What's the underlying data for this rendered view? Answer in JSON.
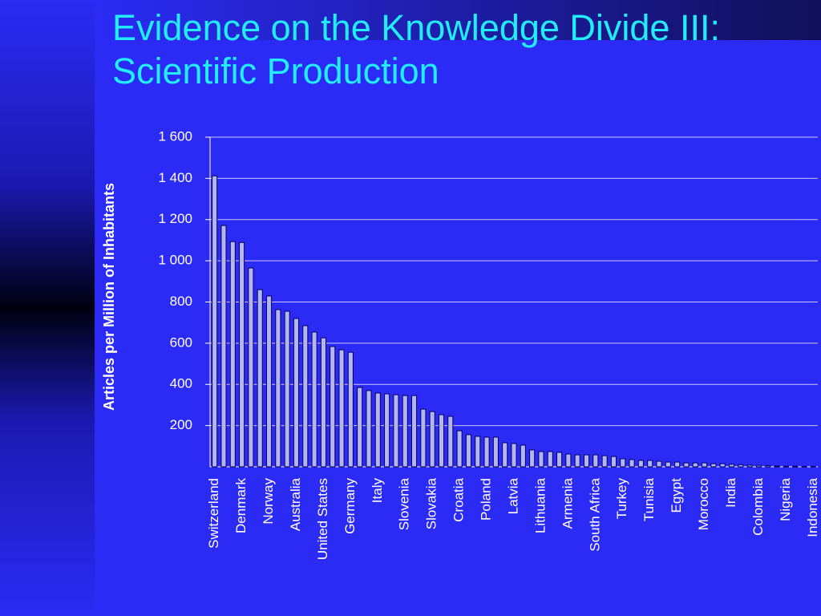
{
  "chart_data": {
    "type": "bar",
    "title": "Evidence on the Knowledge Divide III: Scientific Production",
    "y_label": "Articles per Million of Inhabitants",
    "categories": [
      "Switzerland",
      null,
      null,
      "Denmark",
      null,
      null,
      "Norway",
      null,
      null,
      "Australia",
      null,
      null,
      "United States",
      null,
      null,
      "Germany",
      null,
      null,
      "Italy",
      null,
      null,
      "Slovenia",
      null,
      null,
      "Slovakia",
      null,
      null,
      "Croatia",
      null,
      null,
      "Poland",
      null,
      null,
      "Latvia",
      null,
      null,
      "Lithuania",
      null,
      null,
      "Armenia",
      null,
      null,
      "South Africa",
      null,
      null,
      "Turkey",
      null,
      null,
      "Tunisia",
      null,
      null,
      "Egypt",
      null,
      null,
      "Morocco",
      null,
      null,
      "India",
      null,
      null,
      "Colombia",
      null,
      null,
      "Nigeria",
      null,
      null,
      "Indonesia"
    ],
    "values": [
      1412,
      1171,
      1093,
      1089,
      965,
      860,
      829,
      763,
      755,
      720,
      685,
      654,
      626,
      584,
      568,
      556,
      385,
      370,
      358,
      354,
      350,
      346,
      346,
      280,
      268,
      253,
      245,
      175,
      156,
      148,
      144,
      144,
      117,
      113,
      105,
      82,
      74,
      74,
      70,
      62,
      58,
      58,
      58,
      54,
      50,
      39,
      35,
      31,
      31,
      27,
      23,
      23,
      19,
      19,
      19,
      15,
      15,
      12,
      10,
      8,
      7,
      6,
      4,
      3,
      3,
      2,
      2
    ],
    "color": "#b4b4f0",
    "ylim": [
      0,
      1600
    ],
    "yticks": [
      200,
      400,
      600,
      800,
      {
        "value": 1000,
        "label": "1 000"
      },
      {
        "value": 1200,
        "label": "1 200"
      },
      {
        "value": 1400,
        "label": "1 400"
      },
      {
        "value": 1600,
        "label": "1 600"
      }
    ],
    "grid": true
  }
}
